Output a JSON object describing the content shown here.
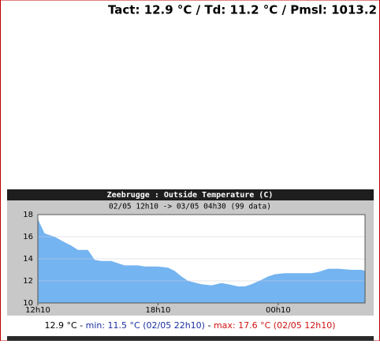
{
  "header": "Tact: 12.9 °C / Td: 11.2 °C / Pmsl: 1013.2",
  "chart_data": {
    "type": "area",
    "title": "Zeebrugge : Outside Temperature (C)",
    "subtitle": "02/05 12h10 -> 03/05 04h30 (99 data)",
    "x": [
      0,
      20,
      30,
      50,
      80,
      100,
      120,
      150,
      170,
      190,
      220,
      240,
      260,
      300,
      320,
      360,
      390,
      410,
      430,
      450,
      490,
      520,
      550,
      570,
      600,
      620,
      640,
      670,
      690,
      710,
      740,
      780,
      820,
      840,
      870,
      900,
      940,
      970,
      980
    ],
    "series": [
      {
        "name": "Outside Temperature",
        "color": "#74b4f0",
        "values": [
          17.6,
          16.3,
          16.2,
          16.0,
          15.5,
          15.2,
          14.8,
          14.8,
          13.9,
          13.8,
          13.8,
          13.6,
          13.4,
          13.4,
          13.3,
          13.3,
          13.2,
          12.9,
          12.4,
          12.0,
          11.7,
          11.6,
          11.8,
          11.7,
          11.5,
          11.5,
          11.7,
          12.1,
          12.4,
          12.6,
          12.7,
          12.7,
          12.7,
          12.8,
          13.1,
          13.1,
          13.0,
          13.0,
          12.9
        ]
      }
    ],
    "xlim": [
      0,
      980
    ],
    "xticks": [
      {
        "value": 0,
        "label": "12h10"
      },
      {
        "value": 360,
        "label": "18h10"
      },
      {
        "value": 720,
        "label": "00h10"
      }
    ],
    "ylim": [
      10,
      18
    ],
    "yticks": [
      10,
      12,
      14,
      16,
      18
    ],
    "grid": true
  },
  "footer": {
    "current": "12.9 °C",
    "separator": "-",
    "min": "min: 11.5 °C (02/05 22h10)",
    "max": "max: 17.6 °C (02/05 12h10)"
  }
}
